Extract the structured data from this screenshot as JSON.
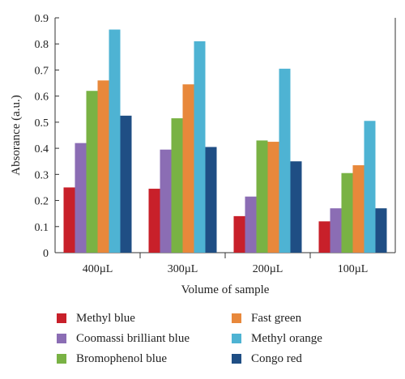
{
  "chart_data": {
    "type": "bar",
    "categories": [
      "400µL",
      "300µL",
      "200µL",
      "100µL"
    ],
    "xlabel": "Volume of sample",
    "ylabel": "Absorance (a.u.)",
    "ylim": [
      0,
      0.9
    ],
    "yticks": [
      "0",
      "0.1",
      "0.2",
      "0.3",
      "0.4",
      "0.5",
      "0.6",
      "0.7",
      "0.8",
      "0.9"
    ],
    "grid": false,
    "legend_position": "bottom",
    "series": [
      {
        "name": "Methyl blue",
        "color": "#c8202a",
        "values": [
          0.25,
          0.245,
          0.14,
          0.12
        ]
      },
      {
        "name": "Coomassi brilliant blue",
        "color": "#8b6db4",
        "values": [
          0.42,
          0.395,
          0.215,
          0.17
        ]
      },
      {
        "name": "Bromophenol blue",
        "color": "#79b244",
        "values": [
          0.62,
          0.515,
          0.43,
          0.305
        ]
      },
      {
        "name": "Fast green",
        "color": "#e8883b",
        "values": [
          0.66,
          0.645,
          0.425,
          0.335
        ]
      },
      {
        "name": "Methyl orange",
        "color": "#4eb3d3",
        "values": [
          0.855,
          0.81,
          0.705,
          0.505
        ]
      },
      {
        "name": "Congo red",
        "color": "#1f4e84",
        "values": [
          0.525,
          0.405,
          0.35,
          0.17
        ]
      }
    ]
  }
}
